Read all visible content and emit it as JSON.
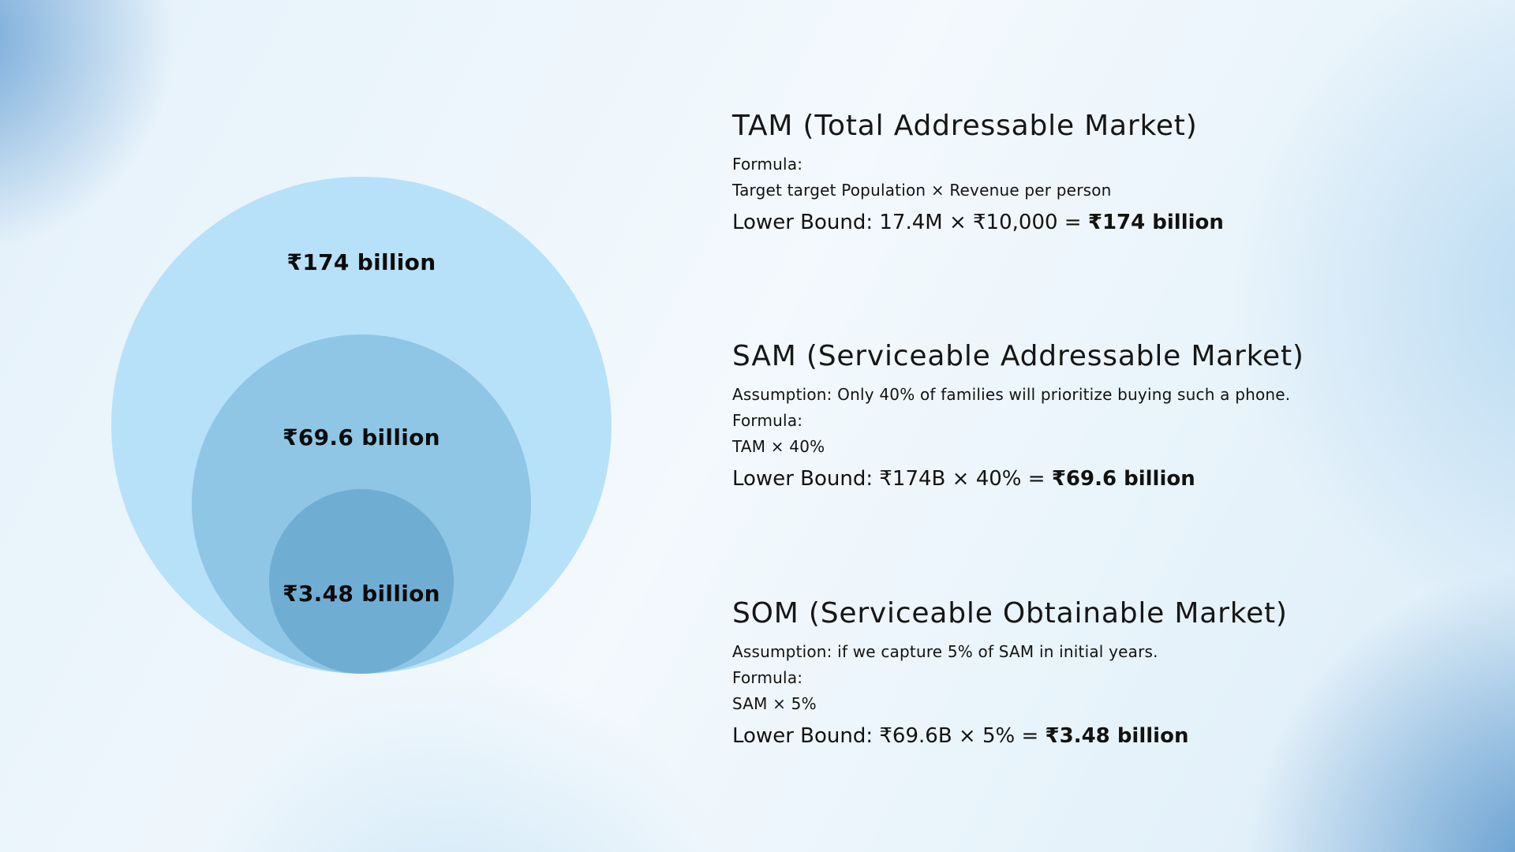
{
  "venn": {
    "circles": [
      {
        "id": "tam",
        "label": "₹174 billion",
        "color": "#b7e1f8"
      },
      {
        "id": "sam",
        "label": "₹69.6 billion",
        "color": "#8fc6e5"
      },
      {
        "id": "som",
        "label": "₹3.48 billion",
        "color": "#70add3"
      }
    ]
  },
  "sections": [
    {
      "id": "tam",
      "heading": "TAM (Total Addressable Market)",
      "formula_label": "Formula:",
      "formula": "Target target Population × Revenue per person",
      "lower_bound_prefix": "Lower Bound: 17.4M × ₹10,000 = ",
      "lower_bound_value": "₹174 billion"
    },
    {
      "id": "sam",
      "heading": "SAM (Serviceable Addressable Market)",
      "assumption": "Assumption: Only 40% of families will prioritize buying such a phone.",
      "formula_label": "Formula:",
      "formula": "TAM × 40%",
      "lower_bound_prefix": "Lower Bound: ₹174B × 40% = ",
      "lower_bound_value": "₹69.6 billion"
    },
    {
      "id": "som",
      "heading": "SOM (Serviceable Obtainable Market)",
      "assumption": "Assumption: if we capture 5% of SAM in initial years.",
      "formula_label": "Formula:",
      "formula": "SAM × 5%",
      "lower_bound_prefix": "Lower Bound: ₹69.6B × 5% = ",
      "lower_bound_value": "₹3.48 billion"
    }
  ],
  "chart_data": {
    "type": "concentric-circles",
    "series": [
      {
        "name": "TAM",
        "label": "₹174 billion",
        "value_billion_inr": 174
      },
      {
        "name": "SAM",
        "label": "₹69.6 billion",
        "value_billion_inr": 69.6
      },
      {
        "name": "SOM",
        "label": "₹3.48 billion",
        "value_billion_inr": 3.48
      }
    ],
    "legend_position": "none",
    "layout": "nested circles, bottom-aligned, labels inside"
  }
}
